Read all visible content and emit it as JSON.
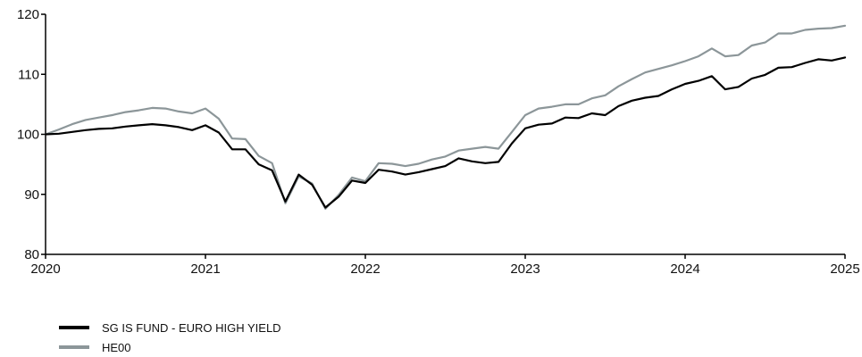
{
  "chart_data": {
    "type": "line",
    "x_ticks": [
      "2020",
      "2021",
      "2022",
      "2023",
      "2024",
      "2025"
    ],
    "y_ticks": [
      80,
      90,
      100,
      110,
      120
    ],
    "xlim": [
      2020,
      2025
    ],
    "ylim": [
      80,
      120
    ],
    "grid": false,
    "legend_position": "bottom-left",
    "series": [
      {
        "name": "SG IS FUND - EURO HIGH YIELD",
        "color": "#000000",
        "x": [
          2020.0,
          2020.083,
          2020.167,
          2020.25,
          2020.333,
          2020.417,
          2020.5,
          2020.583,
          2020.667,
          2020.75,
          2020.833,
          2020.917,
          2021.0,
          2021.083,
          2021.167,
          2021.25,
          2021.333,
          2021.417,
          2021.5,
          2021.583,
          2021.667,
          2021.75,
          2021.833,
          2021.917,
          2022.0,
          2022.083,
          2022.167,
          2022.25,
          2022.333,
          2022.417,
          2022.5,
          2022.583,
          2022.667,
          2022.75,
          2022.833,
          2022.917,
          2023.0,
          2023.083,
          2023.167,
          2023.25,
          2023.333,
          2023.417,
          2023.5,
          2023.583,
          2023.667,
          2023.75,
          2023.833,
          2023.917,
          2024.0,
          2024.083,
          2024.167,
          2024.25,
          2024.333,
          2024.417,
          2024.5,
          2024.583,
          2024.667,
          2024.75,
          2024.833,
          2024.917,
          2025.0
        ],
        "values": [
          100.0,
          100.1,
          100.4,
          100.7,
          100.9,
          101.0,
          101.3,
          101.5,
          101.7,
          101.5,
          101.2,
          100.7,
          101.5,
          100.3,
          97.5,
          97.5,
          95.0,
          94.0,
          88.8,
          93.3,
          91.6,
          87.8,
          89.6,
          92.3,
          91.9,
          94.1,
          93.8,
          93.3,
          93.7,
          94.2,
          94.7,
          96.0,
          95.5,
          95.2,
          95.4,
          98.5,
          101.0,
          101.6,
          101.8,
          102.8,
          102.7,
          103.5,
          103.2,
          104.7,
          105.6,
          106.1,
          106.4,
          107.5,
          108.4,
          108.9,
          109.7,
          107.5,
          107.9,
          109.3,
          109.9,
          111.1,
          111.2,
          111.9,
          112.5,
          112.3,
          112.8
        ]
      },
      {
        "name": "HE00",
        "color": "#8c9699",
        "x": [
          2020.0,
          2020.083,
          2020.167,
          2020.25,
          2020.333,
          2020.417,
          2020.5,
          2020.583,
          2020.667,
          2020.75,
          2020.833,
          2020.917,
          2021.0,
          2021.083,
          2021.167,
          2021.25,
          2021.333,
          2021.417,
          2021.5,
          2021.583,
          2021.667,
          2021.75,
          2021.833,
          2021.917,
          2022.0,
          2022.083,
          2022.167,
          2022.25,
          2022.333,
          2022.417,
          2022.5,
          2022.583,
          2022.667,
          2022.75,
          2022.833,
          2022.917,
          2023.0,
          2023.083,
          2023.167,
          2023.25,
          2023.333,
          2023.417,
          2023.5,
          2023.583,
          2023.667,
          2023.75,
          2023.833,
          2023.917,
          2024.0,
          2024.083,
          2024.167,
          2024.25,
          2024.333,
          2024.417,
          2024.5,
          2024.583,
          2024.667,
          2024.75,
          2024.833,
          2024.917,
          2025.0
        ],
        "values": [
          100.0,
          100.8,
          101.7,
          102.4,
          102.8,
          103.2,
          103.7,
          104.0,
          104.4,
          104.3,
          103.8,
          103.5,
          104.3,
          102.6,
          99.3,
          99.2,
          96.4,
          95.2,
          88.5,
          93.0,
          91.8,
          87.6,
          89.9,
          92.8,
          92.2,
          95.2,
          95.1,
          94.7,
          95.1,
          95.8,
          96.3,
          97.3,
          97.6,
          97.9,
          97.6,
          100.4,
          103.2,
          104.3,
          104.6,
          105.0,
          105.0,
          106.0,
          106.5,
          108.0,
          109.2,
          110.3,
          110.9,
          111.5,
          112.2,
          113.0,
          114.3,
          113.0,
          113.2,
          114.8,
          115.3,
          116.8,
          116.8,
          117.4,
          117.6,
          117.7,
          118.1
        ]
      }
    ]
  }
}
